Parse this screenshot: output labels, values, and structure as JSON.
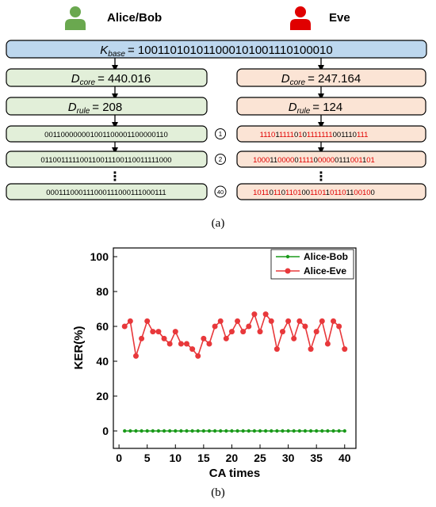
{
  "panel_a": {
    "parties": {
      "left": {
        "name": "Alice/Bob",
        "icon": "user-icon",
        "color": "#6aa84f"
      },
      "right": {
        "name": "Eve",
        "icon": "user-icon",
        "color": "#e00000"
      }
    },
    "kbase": {
      "symbol": "K",
      "subscript": "base",
      "value": "= 100110101011000101001110100010"
    },
    "left": {
      "dcore": {
        "symbol": "D",
        "subscript": "core",
        "value": "= 440.016"
      },
      "drule": {
        "symbol": "D",
        "subscript": "rule",
        "value": "= 208"
      },
      "rows": [
        "001100000001001100001100000110",
        "011001111100110011100110011111000",
        "000111000111000111000111000111"
      ]
    },
    "right": {
      "dcore": {
        "symbol": "D",
        "subscript": "core",
        "value": "= 247.164"
      },
      "drule": {
        "symbol": "D",
        "subscript": "rule",
        "value": "= 124"
      },
      "rows": [
        [
          [
            "1110",
            "#e00000"
          ],
          [
            "1",
            "#000000"
          ],
          [
            "1111",
            "#e00000"
          ],
          [
            "0",
            "#000000"
          ],
          [
            "1",
            "#e00000"
          ],
          [
            "0",
            "#000000"
          ],
          [
            "1",
            "#e00000"
          ],
          [
            "111111",
            "#e00000"
          ],
          [
            "001110",
            "#000000"
          ],
          [
            "111",
            "#e00000"
          ]
        ],
        [
          [
            "1000",
            "#e00000"
          ],
          [
            "11",
            "#000000"
          ],
          [
            "0000",
            "#e00000"
          ],
          [
            "0",
            "#000000"
          ],
          [
            "1111",
            "#e00000"
          ],
          [
            "0",
            "#000000"
          ],
          [
            "0000",
            "#e00000"
          ],
          [
            "0111",
            "#000000"
          ],
          [
            "001",
            "#e00000"
          ],
          [
            "1",
            "#000000"
          ],
          [
            "01",
            "#e00000"
          ]
        ],
        [
          [
            "1011",
            "#e00000"
          ],
          [
            "0",
            "#000000"
          ],
          [
            "11",
            "#e00000"
          ],
          [
            "0",
            "#000000"
          ],
          [
            "1101",
            "#e00000"
          ],
          [
            "00",
            "#000000"
          ],
          [
            "1101",
            "#e00000"
          ],
          [
            "1",
            "#000000"
          ],
          [
            "0110",
            "#e00000"
          ],
          [
            "11",
            "#000000"
          ],
          [
            "0010",
            "#e00000"
          ],
          [
            "0",
            "#000000"
          ]
        ]
      ]
    },
    "steps": [
      "1",
      "2",
      "40"
    ],
    "ellipsis": "⋮",
    "caption": "(a)",
    "colors": {
      "kbase_fill": "#bdd7ee",
      "left_fill": "#e2efd9",
      "right_fill": "#fbe4d5",
      "eve_bit": "#e00000"
    }
  },
  "panel_b": {
    "caption": "(b)",
    "chart_data": {
      "type": "line",
      "xlabel": "CA times",
      "ylabel": "KER(%)",
      "xlim": [
        -1,
        42
      ],
      "ylim": [
        -10,
        105
      ],
      "xticks": [
        0,
        5,
        10,
        15,
        20,
        25,
        30,
        35,
        40
      ],
      "yticks": [
        0,
        20,
        40,
        60,
        80,
        100
      ],
      "legend_position": "top-right",
      "series": [
        {
          "name": "Alice-Bob",
          "color": "#1a9a1a",
          "marker": "small-circle",
          "x": [
            1,
            2,
            3,
            4,
            5,
            6,
            7,
            8,
            9,
            10,
            11,
            12,
            13,
            14,
            15,
            16,
            17,
            18,
            19,
            20,
            21,
            22,
            23,
            24,
            25,
            26,
            27,
            28,
            29,
            30,
            31,
            32,
            33,
            34,
            35,
            36,
            37,
            38,
            39,
            40
          ],
          "y": [
            0,
            0,
            0,
            0,
            0,
            0,
            0,
            0,
            0,
            0,
            0,
            0,
            0,
            0,
            0,
            0,
            0,
            0,
            0,
            0,
            0,
            0,
            0,
            0,
            0,
            0,
            0,
            0,
            0,
            0,
            0,
            0,
            0,
            0,
            0,
            0,
            0,
            0,
            0,
            0
          ]
        },
        {
          "name": "Alice-Eve",
          "color": "#e8383b",
          "marker": "circle",
          "x": [
            1,
            2,
            3,
            4,
            5,
            6,
            7,
            8,
            9,
            10,
            11,
            12,
            13,
            14,
            15,
            16,
            17,
            18,
            19,
            20,
            21,
            22,
            23,
            24,
            25,
            26,
            27,
            28,
            29,
            30,
            31,
            32,
            33,
            34,
            35,
            36,
            37,
            38,
            39,
            40
          ],
          "y": [
            60,
            63,
            43,
            53,
            63,
            57,
            57,
            53,
            50,
            57,
            50,
            50,
            47,
            43,
            53,
            50,
            60,
            63,
            53,
            57,
            63,
            57,
            60,
            67,
            57,
            67,
            63,
            47,
            57,
            63,
            53,
            63,
            60,
            47,
            57,
            63,
            50,
            63,
            60,
            47
          ]
        }
      ]
    }
  }
}
